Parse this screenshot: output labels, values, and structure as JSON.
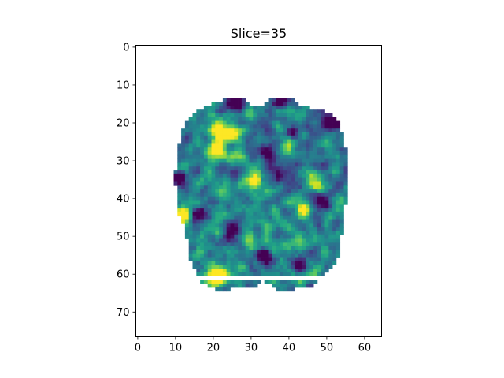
{
  "chart_data": {
    "type": "heatmap",
    "title": "Slice=35",
    "xlabel": "",
    "ylabel": "",
    "xlim": [
      -0.5,
      64.5
    ],
    "ylim": [
      76.5,
      -0.5
    ],
    "grid": false,
    "colormap": "viridis",
    "xticks": [
      0,
      10,
      20,
      30,
      40,
      50,
      60
    ],
    "yticks": [
      0,
      10,
      20,
      30,
      40,
      50,
      60,
      70
    ],
    "grid_shape": [
      77,
      65
    ],
    "mask_rows": [
      [
        14,
        23,
        28
      ],
      [
        14,
        35,
        41
      ],
      [
        15,
        20,
        29
      ],
      [
        15,
        34,
        42
      ],
      [
        16,
        18,
        45
      ],
      [
        17,
        16,
        49
      ],
      [
        18,
        15,
        51
      ],
      [
        19,
        14,
        52
      ],
      [
        20,
        13,
        53
      ],
      [
        22,
        12,
        53
      ],
      [
        24,
        12,
        54
      ],
      [
        26,
        11,
        54
      ],
      [
        28,
        11,
        55
      ],
      [
        30,
        11,
        55
      ],
      [
        32,
        11,
        55
      ],
      [
        33,
        10,
        55
      ],
      [
        36,
        10,
        55
      ],
      [
        38,
        11,
        55
      ],
      [
        40,
        11,
        55
      ],
      [
        42,
        11,
        54
      ],
      [
        44,
        11,
        54
      ],
      [
        46,
        12,
        54
      ],
      [
        48,
        13,
        54
      ],
      [
        50,
        13,
        53
      ],
      [
        52,
        14,
        53
      ],
      [
        54,
        14,
        53
      ],
      [
        56,
        14,
        52
      ],
      [
        58,
        15,
        51
      ],
      [
        60,
        16,
        49
      ],
      [
        62,
        17,
        32
      ],
      [
        62,
        34,
        47
      ],
      [
        63,
        19,
        31
      ],
      [
        63,
        36,
        46
      ],
      [
        64,
        21,
        24
      ],
      [
        64,
        37,
        41
      ]
    ],
    "hotspots": [
      [
        22,
        21,
        0.85
      ],
      [
        23,
        24,
        0.8
      ],
      [
        27,
        21,
        0.75
      ],
      [
        25,
        40,
        0.55
      ],
      [
        36,
        47,
        0.75
      ],
      [
        44,
        12,
        0.8
      ],
      [
        43,
        44,
        0.7
      ],
      [
        35,
        31,
        0.75
      ],
      [
        61,
        20,
        0.85
      ],
      [
        60,
        23,
        0.65
      ],
      [
        29,
        26,
        0.45
      ],
      [
        51,
        30,
        0.4
      ]
    ],
    "coldspots": [
      [
        20,
        51,
        0.85
      ],
      [
        15,
        26,
        0.8
      ],
      [
        28,
        34,
        0.75
      ],
      [
        33,
        37,
        0.7
      ],
      [
        44,
        16,
        0.65
      ],
      [
        41,
        49,
        0.7
      ],
      [
        55,
        33,
        0.7
      ],
      [
        58,
        43,
        0.6
      ],
      [
        14,
        38,
        0.75
      ],
      [
        23,
        41,
        0.55
      ],
      [
        35,
        11,
        0.7
      ],
      [
        48,
        25,
        0.55
      ]
    ],
    "noise_seed": 35
  }
}
